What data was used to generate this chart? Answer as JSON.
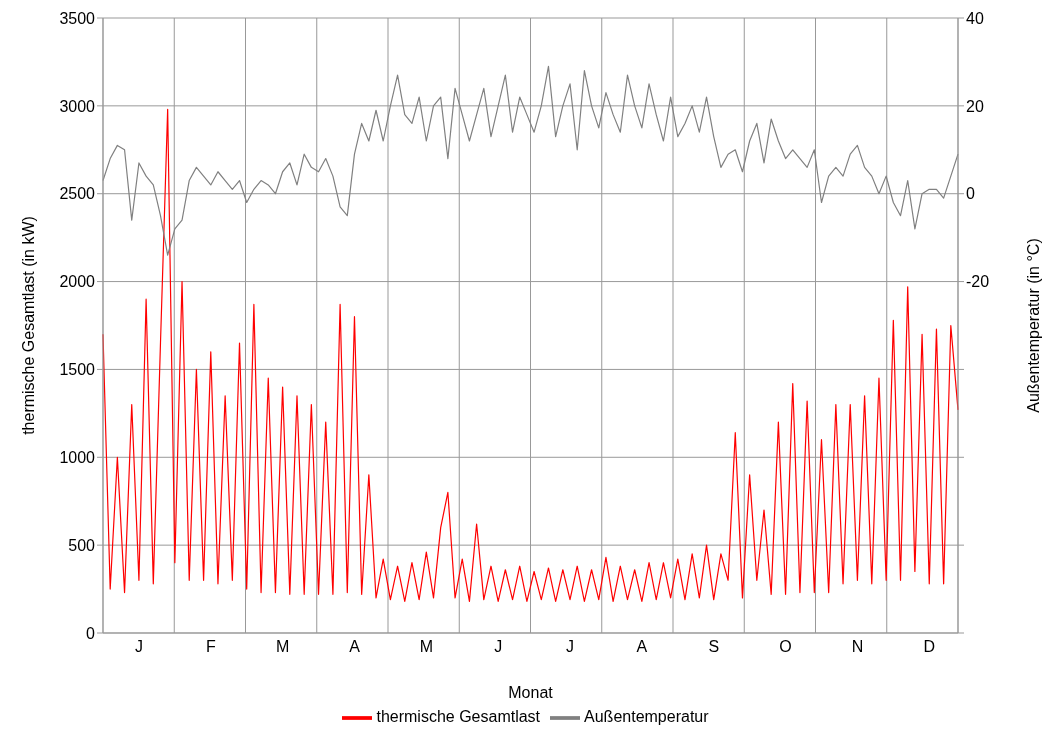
{
  "chart_data": {
    "type": "line",
    "xlabel": "Monat",
    "ylabel": "thermische Gesamtlast (in kW)",
    "y2label": "Außentemperatur (in °C)",
    "categories": [
      null,
      null,
      null,
      null,
      null,
      "J",
      null,
      null,
      null,
      null,
      null,
      null,
      null,
      null,
      null,
      "F",
      null,
      null,
      null,
      null,
      null,
      null,
      null,
      null,
      null,
      "M",
      null,
      null,
      null,
      null,
      null,
      null,
      null,
      null,
      null,
      "A",
      null,
      null,
      null,
      null,
      null,
      null,
      null,
      null,
      null,
      "M",
      null,
      null,
      null,
      null,
      null,
      null,
      null,
      null,
      null,
      "J",
      null,
      null,
      null,
      null,
      null,
      null,
      null,
      null,
      null,
      "J",
      null,
      null,
      null,
      null,
      null,
      null,
      null,
      null,
      null,
      "A",
      null,
      null,
      null,
      null,
      null,
      null,
      null,
      null,
      null,
      "S",
      null,
      null,
      null,
      null,
      null,
      null,
      null,
      null,
      null,
      "O",
      null,
      null,
      null,
      null,
      null,
      null,
      null,
      null,
      null,
      "N",
      null,
      null,
      null,
      null,
      null,
      null,
      null,
      null,
      null,
      "D",
      null,
      null,
      null,
      null
    ],
    "ylim": [
      0,
      3500
    ],
    "yticks": [
      0,
      500,
      1000,
      1500,
      2000,
      2500,
      3000,
      3500
    ],
    "y2lim": [
      -100,
      40
    ],
    "y2ticks": [
      {
        "value": -100,
        "label": null
      },
      {
        "value": -80,
        "label": null
      },
      {
        "value": -60,
        "label": null
      },
      {
        "value": -40,
        "label": null
      },
      -20,
      0,
      20,
      40
    ],
    "grid": true,
    "legend": "bottom",
    "marker": "none",
    "line_style": "solid",
    "series": [
      {
        "name": "thermische Gesamtlast",
        "color": "#ff0000",
        "values": [
          1700,
          250,
          1000,
          230,
          1300,
          300,
          1900,
          280,
          1650,
          2980,
          400,
          2000,
          300,
          1500,
          300,
          1600,
          280,
          1350,
          300,
          1650,
          250,
          1870,
          230,
          1450,
          230,
          1400,
          220,
          1350,
          220,
          1300,
          220,
          1200,
          220,
          1870,
          230,
          1800,
          220,
          900,
          200,
          420,
          190,
          380,
          180,
          400,
          190,
          460,
          200,
          600,
          800,
          200,
          420,
          180,
          620,
          190,
          380,
          180,
          360,
          190,
          380,
          180,
          350,
          190,
          370,
          180,
          360,
          190,
          380,
          180,
          360,
          190,
          430,
          180,
          380,
          190,
          360,
          180,
          400,
          190,
          400,
          200,
          420,
          190,
          450,
          200,
          500,
          190,
          450,
          300,
          1140,
          200,
          900,
          300,
          700,
          220,
          1200,
          220,
          1420,
          230,
          1320,
          230,
          1100,
          230,
          1300,
          280,
          1300,
          300,
          1350,
          280,
          1450,
          300,
          1780,
          300,
          1970,
          350,
          1700,
          280,
          1730,
          280,
          1750,
          1270
        ]
      },
      {
        "name": "Außentemperatur",
        "color": "#808080",
        "axis": "y2",
        "values": [
          3,
          8,
          11,
          10,
          -6,
          7,
          4,
          2,
          -5,
          -14,
          -8,
          -6,
          3,
          6,
          4,
          2,
          5,
          3,
          1,
          3,
          -2,
          1,
          3,
          2,
          0,
          5,
          7,
          2,
          9,
          6,
          5,
          8,
          4,
          -3,
          -5,
          9,
          16,
          12,
          19,
          12,
          20,
          27,
          18,
          16,
          22,
          12,
          20,
          22,
          8,
          24,
          18,
          12,
          18,
          24,
          13,
          20,
          27,
          14,
          22,
          18,
          14,
          20,
          29,
          13,
          20,
          25,
          10,
          28,
          20,
          15,
          23,
          18,
          14,
          27,
          20,
          15,
          25,
          18,
          12,
          22,
          13,
          16,
          20,
          14,
          22,
          13,
          6,
          9,
          10,
          5,
          12,
          16,
          7,
          17,
          12,
          8,
          10,
          8,
          6,
          10,
          -2,
          4,
          6,
          4,
          9,
          11,
          6,
          4,
          0,
          4,
          -2,
          -5,
          3,
          -8,
          0,
          1,
          1,
          -1,
          4,
          9
        ]
      }
    ]
  }
}
